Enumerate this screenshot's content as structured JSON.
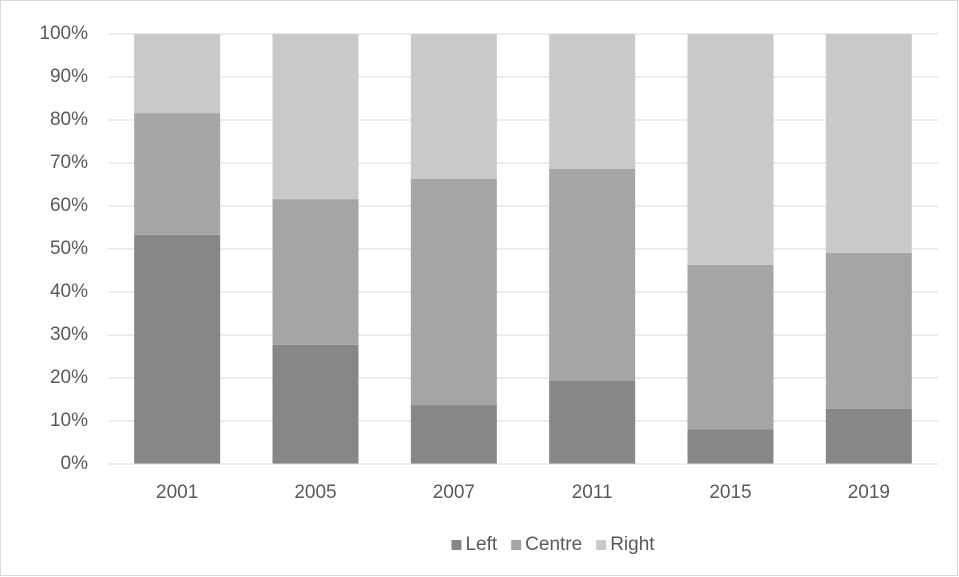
{
  "chart_data": {
    "type": "stacked_bar_100",
    "categories": [
      "2001",
      "2005",
      "2007",
      "2011",
      "2015",
      "2019"
    ],
    "series": [
      {
        "name": "Left",
        "color": "#878787",
        "values": [
          53.3,
          27.7,
          13.7,
          19.3,
          8.1,
          12.8
        ]
      },
      {
        "name": "Centre",
        "color": "#a5a5a5",
        "values": [
          28.3,
          33.9,
          52.6,
          49.3,
          38.2,
          36.3
        ]
      },
      {
        "name": "Right",
        "color": "#c9c9c9",
        "values": [
          18.4,
          38.4,
          33.7,
          31.4,
          53.7,
          50.9
        ]
      }
    ],
    "ylim": [
      0,
      100
    ],
    "yticks": [
      {
        "value": 0,
        "label": "0%"
      },
      {
        "value": 10,
        "label": "10%"
      },
      {
        "value": 20,
        "label": "20%"
      },
      {
        "value": 30,
        "label": "30%"
      },
      {
        "value": 40,
        "label": "40%"
      },
      {
        "value": 50,
        "label": "50%"
      },
      {
        "value": 60,
        "label": "60%"
      },
      {
        "value": 70,
        "label": "70%"
      },
      {
        "value": 80,
        "label": "80%"
      },
      {
        "value": 90,
        "label": "90%"
      },
      {
        "value": 100,
        "label": "100%"
      }
    ],
    "grid": true,
    "legend": "bottom"
  }
}
